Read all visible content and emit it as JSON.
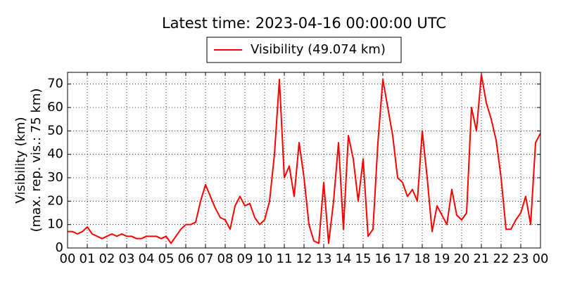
{
  "chart_data": {
    "type": "line",
    "title": "Latest time: 2023-04-16 00:00:00 UTC",
    "y_label_lines": [
      "Visibility (km)",
      "(max. rep. vis.: 75 km)"
    ],
    "x": [
      0,
      0.25,
      0.5,
      0.75,
      1,
      1.25,
      1.5,
      1.75,
      2,
      2.25,
      2.5,
      2.75,
      3,
      3.25,
      3.5,
      3.75,
      4,
      4.25,
      4.5,
      4.75,
      5,
      5.25,
      5.5,
      5.75,
      6,
      6.25,
      6.5,
      6.75,
      7,
      7.25,
      7.5,
      7.75,
      8,
      8.25,
      8.5,
      8.75,
      9,
      9.25,
      9.5,
      9.75,
      10,
      10.25,
      10.5,
      10.75,
      11,
      11.25,
      11.5,
      11.75,
      12,
      12.25,
      12.5,
      12.75,
      13,
      13.25,
      13.5,
      13.75,
      14,
      14.25,
      14.5,
      14.75,
      15,
      15.25,
      15.5,
      15.75,
      16,
      16.25,
      16.5,
      16.75,
      17,
      17.25,
      17.5,
      17.75,
      18,
      18.25,
      18.5,
      18.75,
      19,
      19.25,
      19.5,
      19.75,
      20,
      20.25,
      20.5,
      20.75,
      21,
      21.25,
      21.5,
      21.75,
      22,
      22.25,
      22.5,
      22.75,
      23,
      23.25,
      23.5,
      23.75,
      24
    ],
    "series": [
      {
        "name": "Visibility (49.074 km)",
        "color": "#ff0000",
        "values": [
          7,
          7,
          6,
          7,
          9,
          6,
          5,
          4,
          5,
          6,
          5,
          6,
          5,
          5,
          4,
          4,
          5,
          5,
          5,
          4,
          5,
          2,
          5,
          8,
          10,
          10,
          11,
          20,
          27,
          22,
          17,
          13,
          12,
          8,
          18,
          22,
          18,
          19,
          13,
          10,
          12,
          20,
          40,
          72,
          30,
          35,
          22,
          45,
          30,
          10,
          3,
          2,
          28,
          2,
          20,
          45,
          8,
          48,
          38,
          20,
          38,
          5,
          8,
          45,
          72,
          60,
          48,
          30,
          28,
          22,
          25,
          20,
          50,
          30,
          7,
          18,
          14,
          10,
          25,
          14,
          12,
          15,
          60,
          50,
          74,
          62,
          55,
          46,
          30,
          8,
          8,
          12,
          15,
          22,
          10,
          45,
          49
        ]
      }
    ],
    "xlim": [
      0,
      24
    ],
    "xticks": [
      {
        "value": 0,
        "label": "00"
      },
      {
        "value": 1,
        "label": "01"
      },
      {
        "value": 2,
        "label": "02"
      },
      {
        "value": 3,
        "label": "03"
      },
      {
        "value": 4,
        "label": "04"
      },
      {
        "value": 5,
        "label": "05"
      },
      {
        "value": 6,
        "label": "06"
      },
      {
        "value": 7,
        "label": "07"
      },
      {
        "value": 8,
        "label": "08"
      },
      {
        "value": 9,
        "label": "09"
      },
      {
        "value": 10,
        "label": "10"
      },
      {
        "value": 11,
        "label": "11"
      },
      {
        "value": 12,
        "label": "12"
      },
      {
        "value": 13,
        "label": "13"
      },
      {
        "value": 14,
        "label": "14"
      },
      {
        "value": 15,
        "label": "15"
      },
      {
        "value": 16,
        "label": "16"
      },
      {
        "value": 17,
        "label": "17"
      },
      {
        "value": 18,
        "label": "18"
      },
      {
        "value": 19,
        "label": "19"
      },
      {
        "value": 20,
        "label": "20"
      },
      {
        "value": 21,
        "label": "21"
      },
      {
        "value": 22,
        "label": "22"
      },
      {
        "value": 23,
        "label": "23"
      },
      {
        "value": 24,
        "label": "00"
      }
    ],
    "ylim": [
      0,
      75
    ],
    "yticks": [
      0,
      10,
      20,
      30,
      40,
      50,
      60,
      70
    ],
    "grid": true
  }
}
